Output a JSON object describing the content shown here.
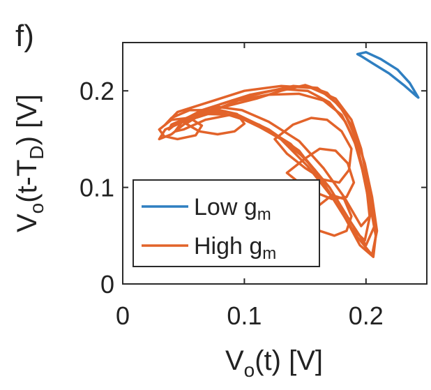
{
  "panel_label": "f)",
  "chart_data": {
    "type": "line",
    "xlabel": {
      "main": "V",
      "sub": "o",
      "rest": "(t) [V]"
    },
    "ylabel": {
      "main": "V",
      "sub1": "o",
      "mid": "(t-T",
      "sub2": "D",
      "rest": ") [V]"
    },
    "xlim": [
      0,
      0.25
    ],
    "ylim": [
      0,
      0.25
    ],
    "xticks": [
      {
        "value": 0,
        "label": "0"
      },
      {
        "value": 0.1,
        "label": "0.1"
      },
      {
        "value": 0.2,
        "label": "0.2"
      }
    ],
    "yticks": [
      {
        "value": 0,
        "label": "0"
      },
      {
        "value": 0.1,
        "label": "0.1"
      },
      {
        "value": 0.2,
        "label": "0.2"
      }
    ],
    "grid": false,
    "legend_position": "bottom-left",
    "series": [
      {
        "name_main": "Low g",
        "name_sub": "m",
        "color": "#2f7fc1",
        "x": [
          0.193,
          0.2,
          0.212,
          0.226,
          0.236,
          0.243,
          0.241,
          0.232,
          0.219,
          0.206,
          0.196,
          0.193
        ],
        "y": [
          0.238,
          0.24,
          0.233,
          0.222,
          0.208,
          0.193,
          0.195,
          0.205,
          0.218,
          0.228,
          0.236,
          0.238
        ]
      },
      {
        "name_main": "High g",
        "name_sub": "m",
        "color": "#e2632a",
        "loops": [
          {
            "x": [
              0.055,
              0.075,
              0.095,
              0.12,
              0.145,
              0.165,
              0.18,
              0.19,
              0.197,
              0.203,
              0.208,
              0.206,
              0.195,
              0.18,
              0.163,
              0.145,
              0.12,
              0.095,
              0.07,
              0.05,
              0.035,
              0.03,
              0.04,
              0.055
            ],
            "y": [
              0.17,
              0.18,
              0.19,
              0.196,
              0.197,
              0.19,
              0.175,
              0.15,
              0.118,
              0.085,
              0.05,
              0.028,
              0.04,
              0.075,
              0.108,
              0.138,
              0.16,
              0.175,
              0.176,
              0.168,
              0.16,
              0.15,
              0.155,
              0.17
            ]
          },
          {
            "x": [
              0.045,
              0.07,
              0.1,
              0.13,
              0.155,
              0.175,
              0.188,
              0.196,
              0.202,
              0.207,
              0.2,
              0.187,
              0.17,
              0.15,
              0.125,
              0.1,
              0.075,
              0.055,
              0.04,
              0.035,
              0.045
            ],
            "y": [
              0.178,
              0.188,
              0.2,
              0.205,
              0.203,
              0.192,
              0.17,
              0.14,
              0.1,
              0.06,
              0.04,
              0.065,
              0.1,
              0.13,
              0.155,
              0.17,
              0.18,
              0.18,
              0.172,
              0.165,
              0.178
            ]
          },
          {
            "x": [
              0.065,
              0.09,
              0.115,
              0.14,
              0.16,
              0.178,
              0.19,
              0.199,
              0.205,
              0.209,
              0.205,
              0.192,
              0.175,
              0.158,
              0.138,
              0.112,
              0.088,
              0.068,
              0.05,
              0.043,
              0.05,
              0.065
            ],
            "y": [
              0.18,
              0.19,
              0.198,
              0.205,
              0.203,
              0.185,
              0.16,
              0.125,
              0.09,
              0.055,
              0.03,
              0.05,
              0.085,
              0.118,
              0.145,
              0.165,
              0.175,
              0.17,
              0.16,
              0.158,
              0.17,
              0.18
            ]
          },
          {
            "x": [
              0.08,
              0.105,
              0.13,
              0.152,
              0.17,
              0.183,
              0.193,
              0.2,
              0.203,
              0.196,
              0.182,
              0.165,
              0.145,
              0.12,
              0.098,
              0.08,
              0.072,
              0.08
            ],
            "y": [
              0.186,
              0.196,
              0.202,
              0.2,
              0.188,
              0.168,
              0.14,
              0.105,
              0.07,
              0.06,
              0.09,
              0.12,
              0.148,
              0.168,
              0.18,
              0.183,
              0.18,
              0.186
            ]
          },
          {
            "x": [
              0.04,
              0.06,
              0.085,
              0.11,
              0.13,
              0.15,
              0.168,
              0.182,
              0.192,
              0.198,
              0.204,
              0.199,
              0.188,
              0.172,
              0.152,
              0.13,
              0.105,
              0.08,
              0.06,
              0.045,
              0.038,
              0.04
            ],
            "y": [
              0.165,
              0.176,
              0.184,
              0.192,
              0.2,
              0.206,
              0.198,
              0.178,
              0.15,
              0.112,
              0.075,
              0.045,
              0.058,
              0.09,
              0.122,
              0.15,
              0.168,
              0.178,
              0.175,
              0.167,
              0.16,
              0.165
            ]
          },
          {
            "x": [
              0.125,
              0.14,
              0.155,
              0.168,
              0.18,
              0.188,
              0.186,
              0.178,
              0.165,
              0.15,
              0.135,
              0.125
            ],
            "y": [
              0.15,
              0.165,
              0.172,
              0.17,
              0.158,
              0.14,
              0.118,
              0.105,
              0.108,
              0.12,
              0.135,
              0.15
            ]
          },
          {
            "x": [
              0.135,
              0.15,
              0.162,
              0.175,
              0.185,
              0.19,
              0.184,
              0.172,
              0.158,
              0.145,
              0.135
            ],
            "y": [
              0.115,
              0.13,
              0.14,
              0.138,
              0.125,
              0.105,
              0.09,
              0.088,
              0.095,
              0.105,
              0.115
            ]
          },
          {
            "x": [
              0.145,
              0.16,
              0.172,
              0.182,
              0.188,
              0.184,
              0.174,
              0.162,
              0.15,
              0.145
            ],
            "y": [
              0.065,
              0.08,
              0.092,
              0.088,
              0.07,
              0.055,
              0.05,
              0.055,
              0.06,
              0.065
            ]
          },
          {
            "x": [
              0.052,
              0.065,
              0.08,
              0.094,
              0.1,
              0.092,
              0.078,
              0.063,
              0.052
            ],
            "y": [
              0.166,
              0.176,
              0.18,
              0.176,
              0.166,
              0.158,
              0.155,
              0.158,
              0.166
            ]
          },
          {
            "x": [
              0.03,
              0.04,
              0.055,
              0.065,
              0.06,
              0.045,
              0.034,
              0.03
            ],
            "y": [
              0.16,
              0.17,
              0.172,
              0.164,
              0.154,
              0.15,
              0.153,
              0.16
            ]
          }
        ]
      }
    ]
  }
}
